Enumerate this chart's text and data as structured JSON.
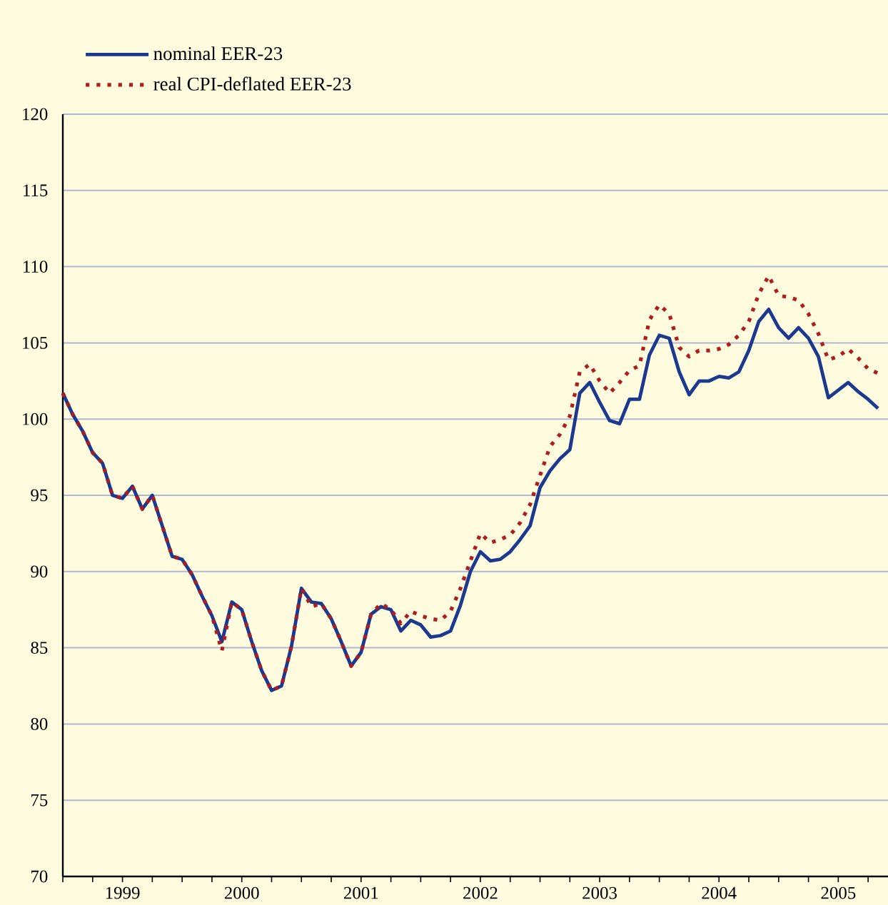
{
  "chart_data": {
    "type": "line",
    "x": [
      "1999-01",
      "1999-02",
      "1999-03",
      "1999-04",
      "1999-05",
      "1999-06",
      "1999-07",
      "1999-08",
      "1999-09",
      "1999-10",
      "1999-11",
      "1999-12",
      "2000-01",
      "2000-02",
      "2000-03",
      "2000-04",
      "2000-05",
      "2000-06",
      "2000-07",
      "2000-08",
      "2000-09",
      "2000-10",
      "2000-11",
      "2000-12",
      "2001-01",
      "2001-02",
      "2001-03",
      "2001-04",
      "2001-05",
      "2001-06",
      "2001-07",
      "2001-08",
      "2001-09",
      "2001-10",
      "2001-11",
      "2001-12",
      "2002-01",
      "2002-02",
      "2002-03",
      "2002-04",
      "2002-05",
      "2002-06",
      "2002-07",
      "2002-08",
      "2002-09",
      "2002-10",
      "2002-11",
      "2002-12",
      "2003-01",
      "2003-02",
      "2003-03",
      "2003-04",
      "2003-05",
      "2003-06",
      "2003-07",
      "2003-08",
      "2003-09",
      "2003-10",
      "2003-11",
      "2003-12",
      "2004-01",
      "2004-02",
      "2004-03",
      "2004-04",
      "2004-05",
      "2004-06",
      "2004-07",
      "2004-08",
      "2004-09",
      "2004-10",
      "2004-11",
      "2004-12",
      "2005-01",
      "2005-02",
      "2005-03",
      "2005-04",
      "2005-05",
      "2005-06",
      "2005-07",
      "2005-08",
      "2005-09",
      "2005-10",
      "2005-11"
    ],
    "series": [
      {
        "name": "nominal EER-23",
        "color": "#1b3a8f",
        "line_style": "solid",
        "values": [
          101.7,
          100.3,
          99.2,
          97.8,
          97.1,
          95.0,
          94.8,
          95.6,
          94.1,
          95.0,
          93.0,
          91.0,
          90.8,
          89.8,
          88.4,
          87.1,
          85.4,
          88.0,
          87.5,
          85.4,
          83.5,
          82.2,
          82.5,
          85.1,
          88.9,
          88.0,
          87.9,
          86.9,
          85.4,
          83.8,
          84.7,
          87.2,
          87.7,
          87.5,
          86.1,
          86.8,
          86.5,
          85.7,
          85.8,
          86.1,
          87.8,
          90.0,
          91.3,
          90.7,
          90.8,
          91.3,
          92.1,
          93.0,
          95.5,
          96.6,
          97.4,
          98.0,
          101.7,
          102.4,
          101.1,
          99.9,
          99.7,
          101.3,
          101.3,
          104.2,
          105.5,
          105.3,
          103.1,
          101.6,
          102.5,
          102.5,
          102.8,
          102.7,
          103.1,
          104.5,
          106.4,
          107.2,
          106.0,
          105.3,
          106.0,
          105.3,
          104.1,
          101.4,
          101.9,
          102.4,
          101.8,
          101.3,
          100.7
        ]
      },
      {
        "name": "real CPI-deflated EER-23",
        "color": "#b01c1c",
        "line_style": "dotted",
        "values": [
          101.7,
          100.3,
          99.2,
          97.8,
          97.1,
          95.0,
          94.8,
          95.6,
          94.1,
          95.0,
          93.0,
          91.0,
          90.8,
          89.8,
          88.4,
          87.1,
          84.8,
          88.0,
          87.5,
          85.4,
          83.5,
          82.2,
          82.5,
          85.1,
          88.9,
          87.7,
          87.9,
          86.9,
          85.4,
          83.8,
          84.7,
          87.2,
          87.9,
          87.5,
          86.6,
          87.4,
          87.1,
          86.9,
          86.8,
          87.4,
          88.9,
          90.7,
          92.5,
          91.9,
          92.1,
          92.4,
          93.2,
          94.4,
          96.3,
          98.2,
          99.0,
          100.2,
          103.1,
          103.6,
          102.5,
          101.7,
          102.4,
          103.2,
          103.5,
          106.5,
          107.5,
          106.9,
          104.7,
          104.1,
          104.5,
          104.5,
          104.6,
          104.9,
          105.5,
          106.4,
          108.2,
          109.4,
          108.1,
          108.0,
          107.8,
          106.9,
          105.6,
          103.9,
          104.1,
          104.6,
          104.0,
          103.3,
          103.0
        ]
      }
    ],
    "xlim": [
      "1999-01",
      "2005-12"
    ],
    "xticks": [
      {
        "value": "1999-01",
        "label": null
      },
      {
        "value": "1999-04",
        "label": null
      },
      {
        "value": "1999-07",
        "label": "1999"
      },
      {
        "value": "1999-10",
        "label": null
      },
      {
        "value": "2000-01",
        "label": null
      },
      {
        "value": "2000-04",
        "label": null
      },
      {
        "value": "2000-07",
        "label": "2000"
      },
      {
        "value": "2000-10",
        "label": null
      },
      {
        "value": "2001-01",
        "label": null
      },
      {
        "value": "2001-04",
        "label": null
      },
      {
        "value": "2001-07",
        "label": "2001"
      },
      {
        "value": "2001-10",
        "label": null
      },
      {
        "value": "2002-01",
        "label": null
      },
      {
        "value": "2002-04",
        "label": null
      },
      {
        "value": "2002-07",
        "label": "2002"
      },
      {
        "value": "2002-10",
        "label": null
      },
      {
        "value": "2003-01",
        "label": null
      },
      {
        "value": "2003-04",
        "label": null
      },
      {
        "value": "2003-07",
        "label": "2003"
      },
      {
        "value": "2003-10",
        "label": null
      },
      {
        "value": "2004-01",
        "label": null
      },
      {
        "value": "2004-04",
        "label": null
      },
      {
        "value": "2004-07",
        "label": "2004"
      },
      {
        "value": "2004-10",
        "label": null
      },
      {
        "value": "2005-01",
        "label": null
      },
      {
        "value": "2005-04",
        "label": null
      },
      {
        "value": "2005-07",
        "label": "2005"
      },
      {
        "value": "2005-10",
        "label": null
      }
    ],
    "ylim": [
      70,
      120
    ],
    "yticks": [
      70,
      75,
      80,
      85,
      90,
      95,
      100,
      105,
      110,
      115,
      120
    ],
    "grid": "y",
    "legend": "top left",
    "marker": "none"
  }
}
